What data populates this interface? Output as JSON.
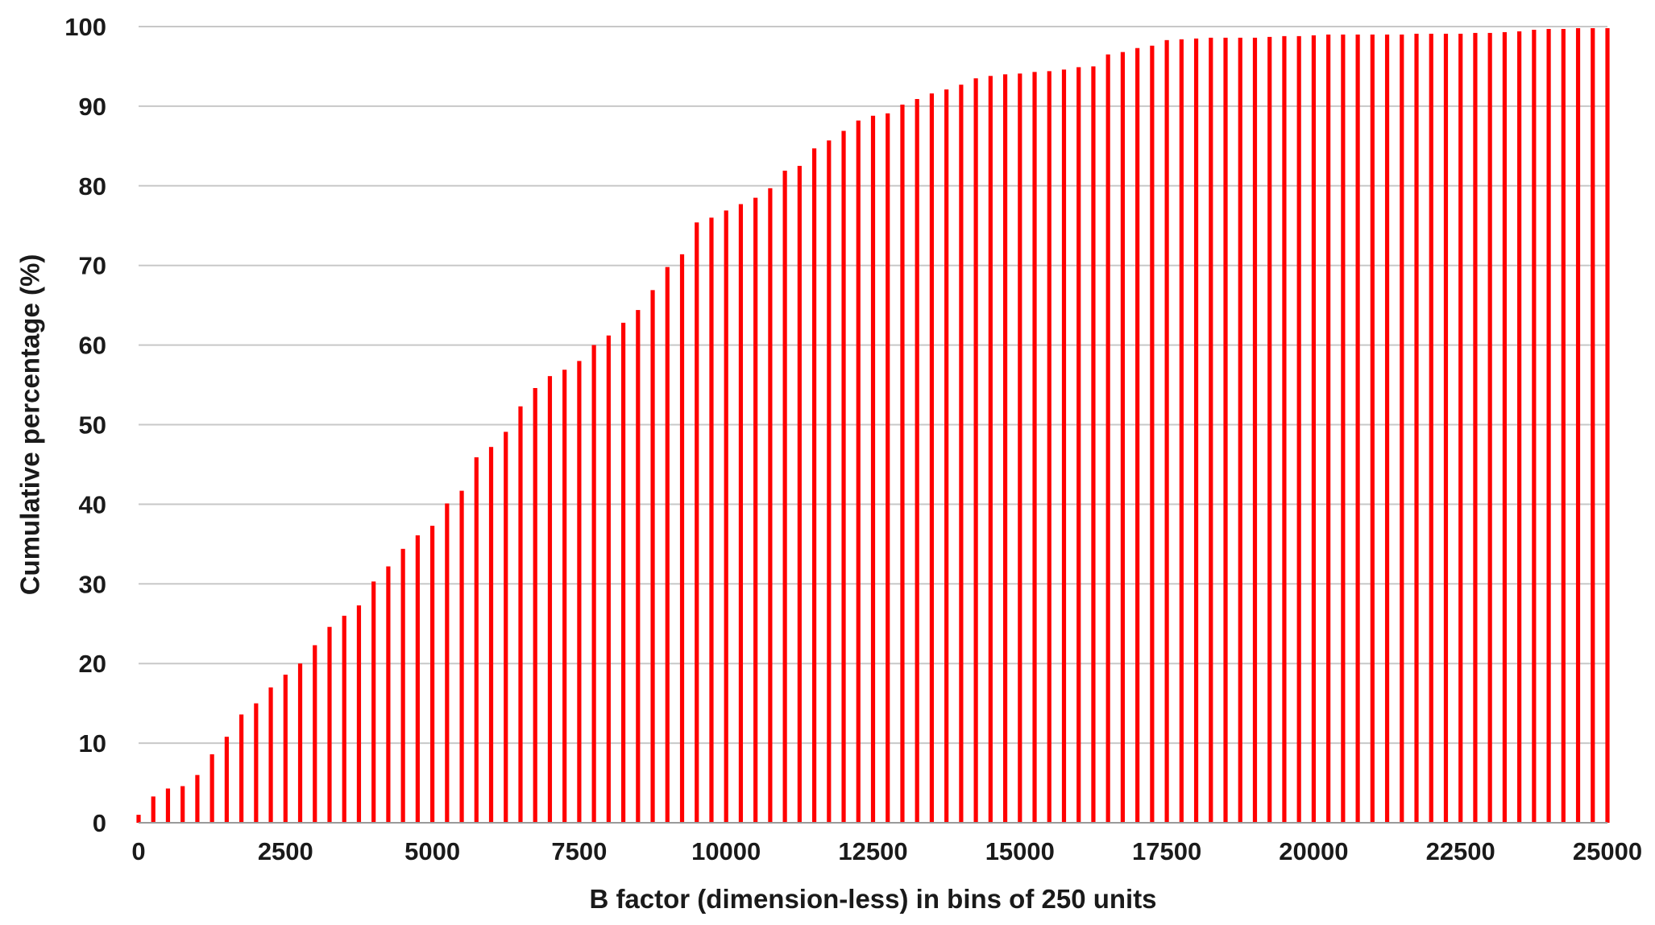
{
  "chart_data": {
    "type": "bar",
    "xlabel": "B factor (dimension-less) in bins of 250 units",
    "ylabel": "Cumulative percentage (%)",
    "xlim": [
      0,
      25000
    ],
    "ylim": [
      0,
      100
    ],
    "x_ticks": [
      0,
      2500,
      5000,
      7500,
      10000,
      12500,
      15000,
      17500,
      20000,
      22500,
      25000
    ],
    "y_ticks": [
      0,
      10,
      20,
      30,
      40,
      50,
      60,
      70,
      80,
      90,
      100
    ],
    "x_tick_labels": [
      "0",
      "2500",
      "5000",
      "7500",
      "10000",
      "12500",
      "15000",
      "17500",
      "20000",
      "22500",
      "25000"
    ],
    "y_tick_labels": [
      "0",
      "10",
      "20",
      "30",
      "40",
      "50",
      "60",
      "70",
      "80",
      "90",
      "100"
    ],
    "grid": true,
    "bar_color": "#ff0000",
    "bin_width": 250,
    "x": [
      0,
      250,
      500,
      750,
      1000,
      1250,
      1500,
      1750,
      2000,
      2250,
      2500,
      2750,
      3000,
      3250,
      3500,
      3750,
      4000,
      4250,
      4500,
      4750,
      5000,
      5250,
      5500,
      5750,
      6000,
      6250,
      6500,
      6750,
      7000,
      7250,
      7500,
      7750,
      8000,
      8250,
      8500,
      8750,
      9000,
      9250,
      9500,
      9750,
      10000,
      10250,
      10500,
      10750,
      11000,
      11250,
      11500,
      11750,
      12000,
      12250,
      12500,
      12750,
      13000,
      13250,
      13500,
      13750,
      14000,
      14250,
      14500,
      14750,
      15000,
      15250,
      15500,
      15750,
      16000,
      16250,
      16500,
      16750,
      17000,
      17250,
      17500,
      17750,
      18000,
      18250,
      18500,
      18750,
      19000,
      19250,
      19500,
      19750,
      20000,
      20250,
      20500,
      20750,
      21000,
      21250,
      21500,
      21750,
      22000,
      22250,
      22500,
      22750,
      23000,
      23250,
      23500,
      23750,
      24000,
      24250,
      24500,
      24750,
      25000
    ],
    "values": [
      1.0,
      3.3,
      4.3,
      4.6,
      6.0,
      8.6,
      10.8,
      13.6,
      15.0,
      17.0,
      18.6,
      20.0,
      22.3,
      24.6,
      26.0,
      27.3,
      30.3,
      32.2,
      34.4,
      36.1,
      37.3,
      40.1,
      41.7,
      45.9,
      47.2,
      49.1,
      52.3,
      54.6,
      56.1,
      56.9,
      58.0,
      60.0,
      61.2,
      62.8,
      64.4,
      66.9,
      69.8,
      71.4,
      75.4,
      76.0,
      76.9,
      77.7,
      78.5,
      79.7,
      81.9,
      82.5,
      84.7,
      85.7,
      86.9,
      88.2,
      88.8,
      89.1,
      90.2,
      90.9,
      91.6,
      92.1,
      92.7,
      93.5,
      93.8,
      94.0,
      94.1,
      94.3,
      94.4,
      94.6,
      94.9,
      95.0,
      96.5,
      96.8,
      97.3,
      97.6,
      98.3,
      98.4,
      98.5,
      98.6,
      98.6,
      98.6,
      98.6,
      98.7,
      98.8,
      98.8,
      98.9,
      99.0,
      99.0,
      99.0,
      99.0,
      99.0,
      99.0,
      99.1,
      99.1,
      99.1,
      99.1,
      99.2,
      99.2,
      99.3,
      99.4,
      99.6,
      99.7,
      99.7,
      99.8,
      99.8,
      99.8
    ]
  }
}
